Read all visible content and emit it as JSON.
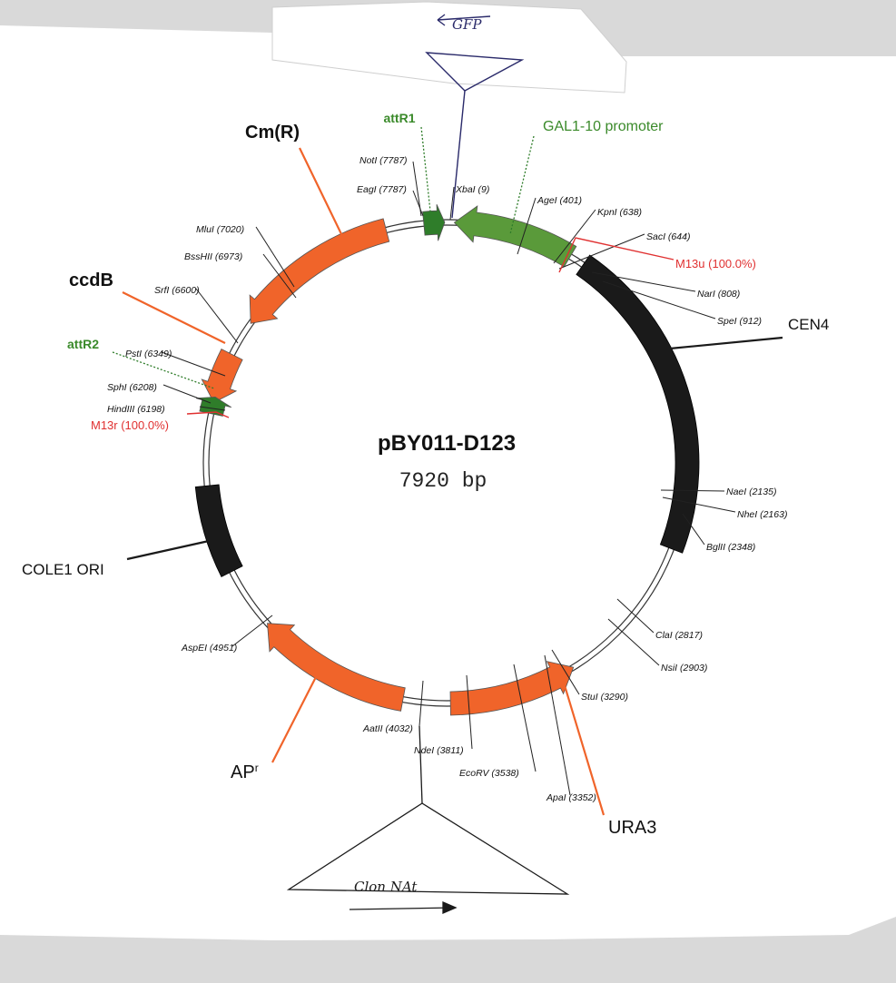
{
  "plasmid": {
    "name": "pBY011-D123",
    "size_label": "7920 bp",
    "total_bp": 7920
  },
  "colors": {
    "orange": "#f0642a",
    "green": "#5a9a3a",
    "dark_green": "#2f7d2a",
    "black": "#1a1a1a",
    "red": "#e03030",
    "label_green": "#3a8a2a",
    "paper": "#ffffff",
    "background": "#d9d9d9",
    "pen_blue": "#2a2a6a"
  },
  "features": [
    {
      "id": "cmr",
      "label": "Cm(R)",
      "type": "arrow",
      "color": "orange",
      "start": 6720,
      "end": 7600,
      "direction": "ccw",
      "label_bold": true
    },
    {
      "id": "attr1",
      "label": "attR1",
      "type": "arrow",
      "color": "dark_green",
      "start": 7800,
      "end": 7910,
      "direction": "cw",
      "label_bold": true,
      "label_color": "label_green"
    },
    {
      "id": "gal",
      "label": "GAL1-10 promoter",
      "type": "arrow",
      "color": "green",
      "start": 40,
      "end": 680,
      "direction": "ccw",
      "label_bold": false,
      "label_color": "label_green"
    },
    {
      "id": "cen4",
      "label": "CEN4",
      "type": "block",
      "color": "black",
      "start": 760,
      "end": 2440,
      "label_bold": false
    },
    {
      "id": "ura3",
      "label": "URA3",
      "type": "arrow",
      "color": "orange",
      "start": 3260,
      "end": 3940,
      "direction": "ccw",
      "label_bold": false
    },
    {
      "id": "apr",
      "label": "AP",
      "label_sup": "r",
      "type": "arrow",
      "color": "orange",
      "start": 4190,
      "end": 5020,
      "direction": "cw",
      "label_bold": false
    },
    {
      "id": "cole1",
      "label": "COLE1 ORI",
      "type": "block",
      "color": "black",
      "start": 5350,
      "end": 5820,
      "label_bold": false
    },
    {
      "id": "ccdb",
      "label": "ccdB",
      "type": "arrow",
      "color": "orange",
      "start": 6260,
      "end": 6530,
      "direction": "ccw",
      "label_bold": true
    },
    {
      "id": "attr2",
      "label": "attR2",
      "type": "arrow",
      "color": "dark_green",
      "start": 6200,
      "end": 6290,
      "direction": "cw",
      "label_bold": true,
      "label_color": "label_green"
    }
  ],
  "sites": [
    {
      "name": "NotI",
      "pos_label": "(7787)",
      "text": "NotI (7787)"
    },
    {
      "name": "EagI",
      "pos_label": "(7787)",
      "text": "EagI (7787)"
    },
    {
      "name": "XbaI",
      "pos_label": "(9)",
      "text": "XbaI (9)"
    },
    {
      "name": "AgeI",
      "pos_label": "(401)",
      "text": "AgeI (401)"
    },
    {
      "name": "KpnI",
      "pos_label": "(638)",
      "text": "KpnI (638)"
    },
    {
      "name": "SacI",
      "pos_label": "(644)",
      "text": "SacI (644)"
    },
    {
      "name": "NarI",
      "pos_label": "(808)",
      "text": "NarI (808)"
    },
    {
      "name": "SpeI",
      "pos_label": "(912)",
      "text": "SpeI (912)"
    },
    {
      "name": "NaeI",
      "pos_label": "(2135)",
      "text": "NaeI (2135)"
    },
    {
      "name": "NheI",
      "pos_label": "(2163)",
      "text": "NheI (2163)"
    },
    {
      "name": "BglII",
      "pos_label": "(2348)",
      "text": "BglII (2348)"
    },
    {
      "name": "ClaI",
      "pos_label": "(2817)",
      "text": "ClaI (2817)"
    },
    {
      "name": "NsiI",
      "pos_label": "(2903)",
      "text": "NsiI (2903)"
    },
    {
      "name": "StuI",
      "pos_label": "(3290)",
      "text": "StuI (3290)"
    },
    {
      "name": "ApaI",
      "pos_label": "(3352)",
      "text": "ApaI (3352)"
    },
    {
      "name": "EcoRV",
      "pos_label": "(3538)",
      "text": "EcoRV (3538)"
    },
    {
      "name": "NdeI",
      "pos_label": "(3811)",
      "text": "NdeI (3811)"
    },
    {
      "name": "AatII",
      "pos_label": "(4032)",
      "text": "AatII (4032)"
    },
    {
      "name": "AspEI",
      "pos_label": "(4951)",
      "text": "AspEI (4951)"
    },
    {
      "name": "HindIII",
      "pos_label": "(6198)",
      "text": "HindIII (6198)"
    },
    {
      "name": "SphI",
      "pos_label": "(6208)",
      "text": "SphI (6208)"
    },
    {
      "name": "PstI",
      "pos_label": "(6349)",
      "text": "PstI (6349)"
    },
    {
      "name": "SrfI",
      "pos_label": "(6600)",
      "text": "SrfI (6600)"
    },
    {
      "name": "BssHII",
      "pos_label": "(6973)",
      "text": "BssHII (6973)"
    },
    {
      "name": "MluI",
      "pos_label": "(7020)",
      "text": "MluI (7020)"
    }
  ],
  "primers": [
    {
      "name": "M13u",
      "text": "M13u (100.0%)"
    },
    {
      "name": "M13r",
      "text": "M13r (100.0%)"
    }
  ],
  "handwritten": {
    "gfp": "GFP",
    "clon_nat": "Clon NAt"
  }
}
